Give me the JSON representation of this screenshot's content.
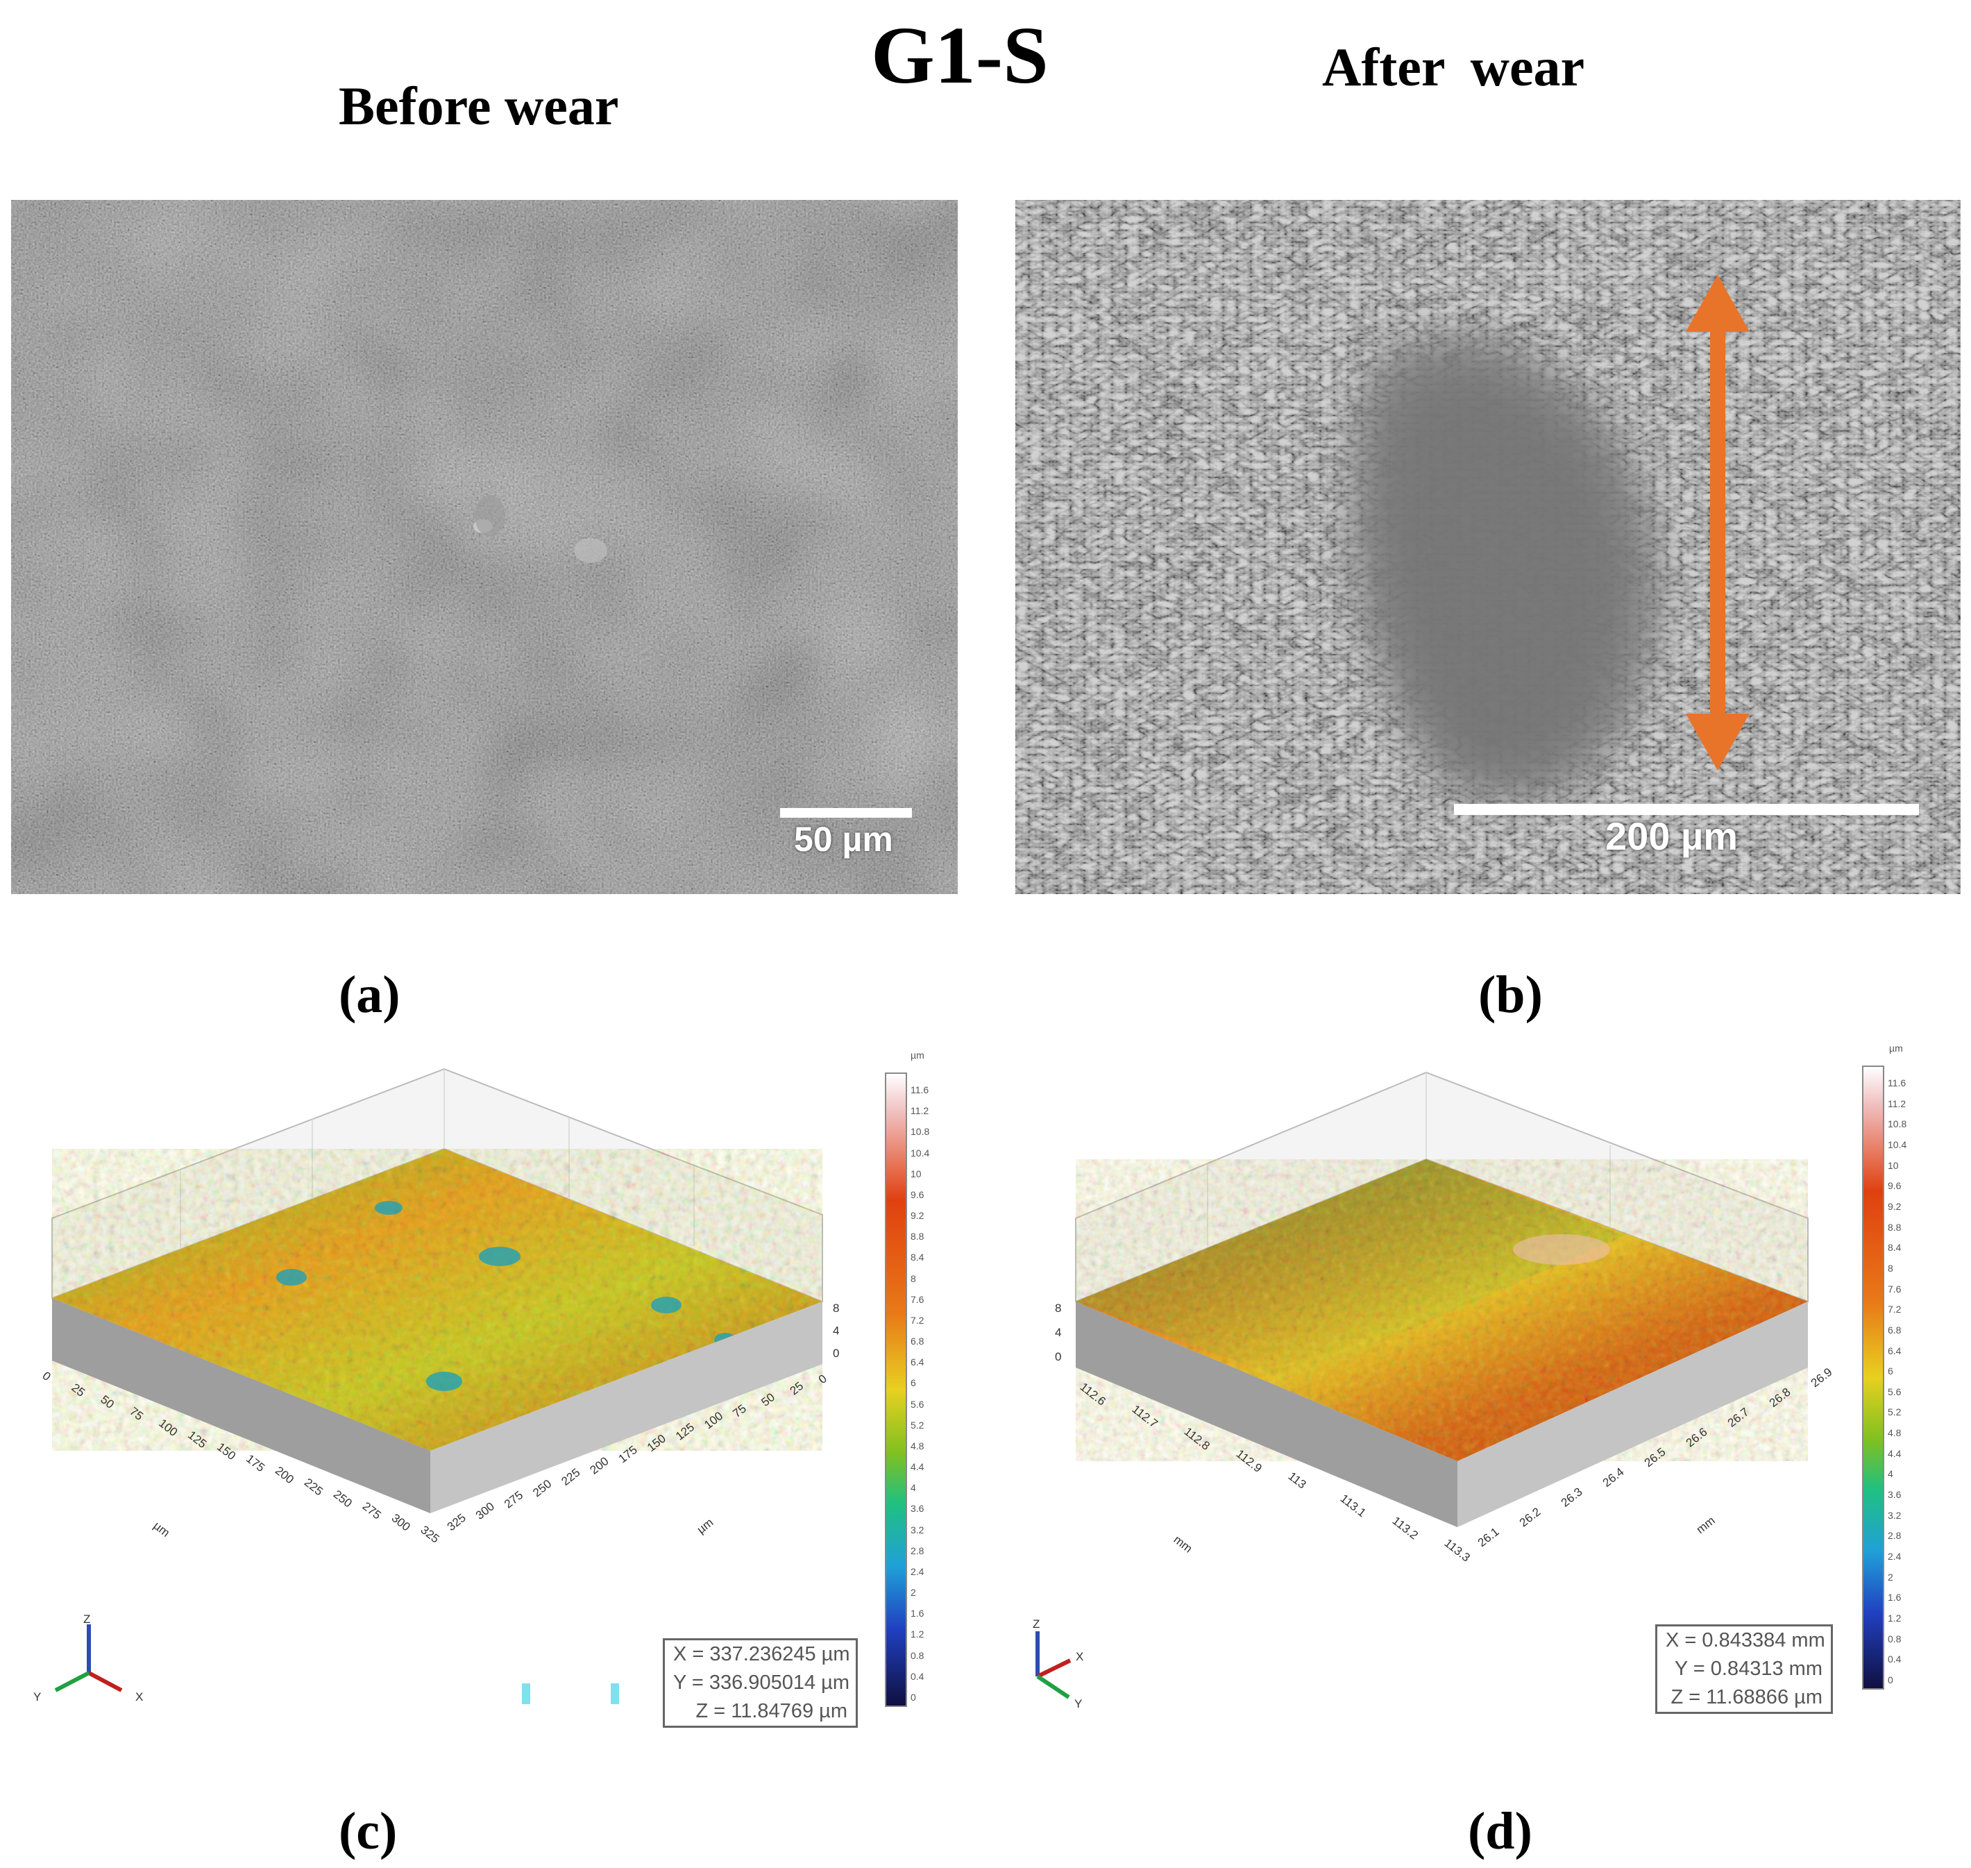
{
  "figure": {
    "title": "G1-S",
    "before_heading": "Before wear",
    "after_heading": "After wear"
  },
  "panels": {
    "a": {
      "label": "(a)",
      "scale_bar": "50 µm"
    },
    "b": {
      "label": "(b)",
      "scale_bar": "200 µm",
      "arrow_color": "#e8742a"
    },
    "c": {
      "label": "(c)",
      "x_ticks": [
        "0",
        "25",
        "50",
        "75",
        "100",
        "125",
        "150",
        "175",
        "200",
        "225",
        "250",
        "275",
        "300",
        "325"
      ],
      "y_ticks": [
        "325",
        "300",
        "275",
        "250",
        "225",
        "200",
        "175",
        "150",
        "125",
        "100",
        "75",
        "50",
        "25",
        "0"
      ],
      "z_ticks": [
        "8",
        "4",
        "0"
      ],
      "x_unit": "µm",
      "y_unit": "µm",
      "readout": {
        "x": "X = 337.236245 µm",
        "y": "Y = 336.905014 µm",
        "z": "Z = 11.84769 µm"
      },
      "colorbar_unit": "µm",
      "colorbar_ticks": [
        "11.6",
        "11.2",
        "10.8",
        "10.4",
        "10",
        "9.6",
        "9.2",
        "8.8",
        "8.4",
        "8",
        "7.6",
        "7.2",
        "6.8",
        "6.4",
        "6",
        "5.6",
        "5.2",
        "4.8",
        "4.4",
        "4",
        "3.6",
        "3.2",
        "2.8",
        "2.4",
        "2",
        "1.6",
        "1.2",
        "0.8",
        "0.4",
        "0"
      ],
      "axes_widget": {
        "z": "Z",
        "x": "X",
        "y": "Y"
      }
    },
    "d": {
      "label": "(d)",
      "x_ticks": [
        "112.6",
        "112.7",
        "112.8",
        "112.9",
        "113",
        "113.1",
        "113.2",
        "113.3"
      ],
      "y_ticks": [
        "26.1",
        "26.2",
        "26.3",
        "26.4",
        "26.5",
        "26.6",
        "26.7",
        "26.8",
        "26.9"
      ],
      "z_ticks": [
        "8",
        "4",
        "0"
      ],
      "x_unit": "mm",
      "y_unit": "mm",
      "readout": {
        "x": "X = 0.843384 mm",
        "y": "Y = 0.84313 mm",
        "z": "Z = 11.68866 µm"
      },
      "colorbar_unit": "µm",
      "colorbar_ticks": [
        "11.6",
        "11.2",
        "10.8",
        "10.4",
        "10",
        "9.6",
        "9.2",
        "8.8",
        "8.4",
        "8",
        "7.6",
        "7.2",
        "6.8",
        "6.4",
        "6",
        "5.6",
        "5.2",
        "4.8",
        "4.4",
        "4",
        "3.6",
        "3.2",
        "2.8",
        "2.4",
        "2",
        "1.6",
        "1.2",
        "0.8",
        "0.4",
        "0"
      ],
      "axes_widget": {
        "z": "Z",
        "x": "X",
        "y": "Y"
      }
    }
  }
}
